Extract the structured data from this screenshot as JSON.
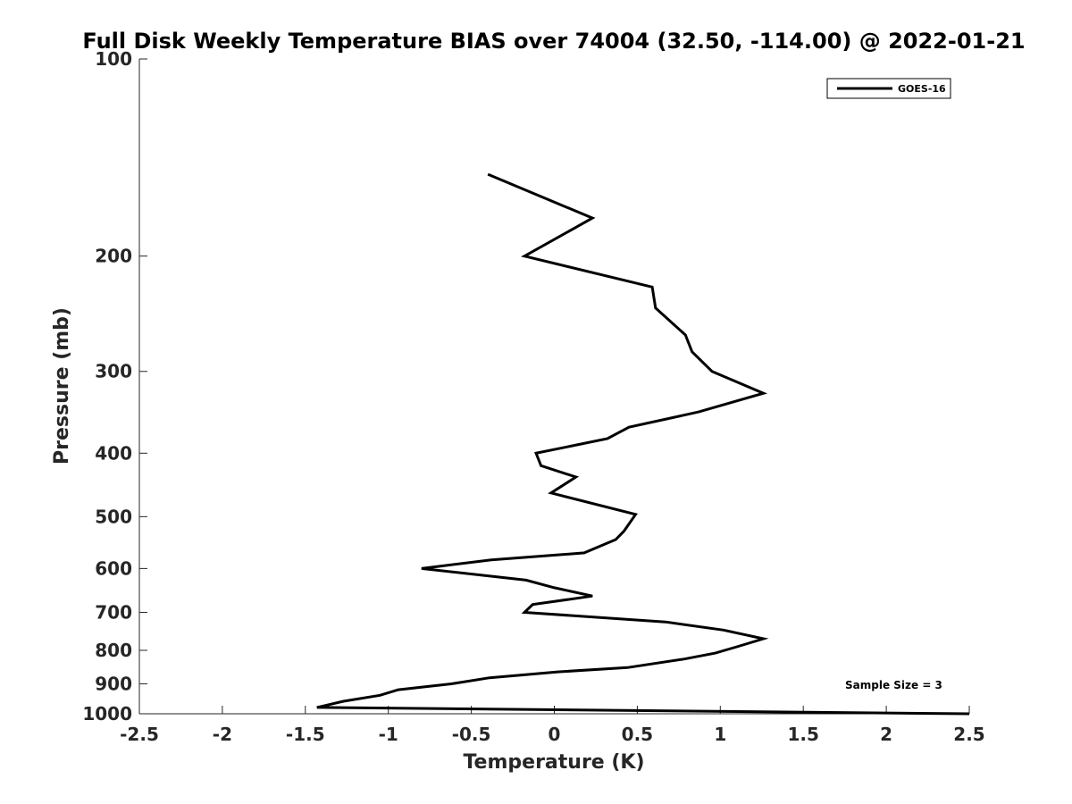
{
  "chart_data": {
    "type": "line",
    "title": "Full Disk Weekly Temperature BIAS over 74004 (32.50, -114.00) @ 2022-01-21",
    "xlabel": "Temperature (K)",
    "ylabel": "Pressure (mb)",
    "xlim": [
      -2.5,
      2.5
    ],
    "ylim": [
      100,
      1000
    ],
    "y_scale": "log",
    "y_reversed": true,
    "x_ticks": [
      "-2.5",
      "-2",
      "-1.5",
      "-1",
      "-0.5",
      "0",
      "0.5",
      "1",
      "1.5",
      "2",
      "2.5"
    ],
    "x_tick_values": [
      -2.5,
      -2,
      -1.5,
      -1,
      -0.5,
      0,
      0.5,
      1,
      1.5,
      2,
      2.5
    ],
    "y_ticks": [
      "100",
      "200",
      "300",
      "400",
      "500",
      "600",
      "700",
      "800",
      "900",
      "1000"
    ],
    "y_tick_values": [
      100,
      200,
      300,
      400,
      500,
      600,
      700,
      800,
      900,
      1000
    ],
    "grid": false,
    "legend_position": "top-right",
    "annotation": "Sample Size = 3",
    "series": [
      {
        "name": "GOES-16",
        "color": "#000000",
        "points": [
          [
            -0.4,
            150
          ],
          [
            0.23,
            175
          ],
          [
            -0.18,
            200
          ],
          [
            0.59,
            223
          ],
          [
            0.61,
            240
          ],
          [
            0.79,
            264
          ],
          [
            0.83,
            280
          ],
          [
            0.95,
            300
          ],
          [
            1.26,
            324
          ],
          [
            0.87,
            346
          ],
          [
            0.45,
            365
          ],
          [
            0.32,
            380
          ],
          [
            -0.11,
            400
          ],
          [
            -0.08,
            418
          ],
          [
            0.13,
            435
          ],
          [
            -0.02,
            460
          ],
          [
            0.49,
            496
          ],
          [
            0.42,
            526
          ],
          [
            0.37,
            542
          ],
          [
            0.18,
            568
          ],
          [
            -0.38,
            582
          ],
          [
            -0.8,
            600
          ],
          [
            -0.17,
            625
          ],
          [
            0.0,
            642
          ],
          [
            0.23,
            661
          ],
          [
            -0.13,
            681
          ],
          [
            -0.18,
            700
          ],
          [
            0.67,
            724
          ],
          [
            1.02,
            745
          ],
          [
            1.26,
            768
          ],
          [
            1.1,
            790
          ],
          [
            0.97,
            808
          ],
          [
            0.78,
            825
          ],
          [
            0.44,
            850
          ],
          [
            0.02,
            863
          ],
          [
            -0.39,
            881
          ],
          [
            -0.62,
            900
          ],
          [
            -0.94,
            919
          ],
          [
            -1.05,
            937
          ],
          [
            -1.27,
            957
          ],
          [
            -1.43,
            978
          ],
          [
            2.5,
            1000
          ]
        ]
      }
    ]
  }
}
